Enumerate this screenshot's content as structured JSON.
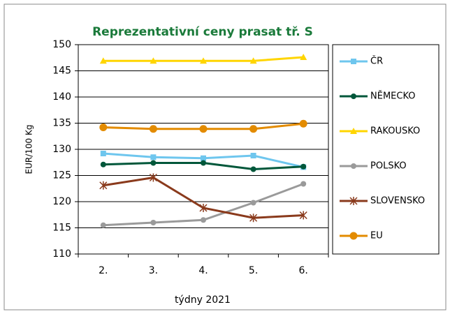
{
  "chart_data": {
    "type": "line",
    "title": "Reprezentativní ceny prasat tř. S",
    "y_label": "EUR/100 Kg",
    "x_label": "týdny 2021",
    "categories": [
      "2.",
      "3.",
      "4.",
      "5.",
      "6."
    ],
    "series": [
      {
        "name": "ČR",
        "color": "#6ec6ee",
        "marker": "square",
        "values": [
          129.2,
          128.5,
          128.3,
          128.8,
          126.6
        ]
      },
      {
        "name": "NĚMECKO",
        "color": "#00573a",
        "marker": "circle",
        "values": [
          127.1,
          127.4,
          127.4,
          126.2,
          126.7
        ]
      },
      {
        "name": "RAKOUSKO",
        "color": "#ffd500",
        "marker": "triangle",
        "values": [
          146.9,
          146.9,
          146.9,
          146.9,
          147.6
        ]
      },
      {
        "name": "POLSKO",
        "color": "#9a9a9a",
        "marker": "circle",
        "values": [
          115.5,
          116.0,
          116.5,
          119.8,
          123.4
        ]
      },
      {
        "name": "SLOVENSKO",
        "color": "#8a3a1c",
        "marker": "star",
        "values": [
          123.1,
          124.6,
          118.8,
          116.9,
          117.4
        ]
      },
      {
        "name": "EU",
        "color": "#e38b00",
        "marker": "bigcircle",
        "values": [
          134.2,
          133.9,
          133.9,
          133.9,
          134.9
        ]
      }
    ],
    "ylim": [
      110,
      150
    ],
    "yticks": [
      110,
      115,
      120,
      125,
      130,
      135,
      140,
      145,
      150
    ],
    "grid": true,
    "legend": "right"
  }
}
